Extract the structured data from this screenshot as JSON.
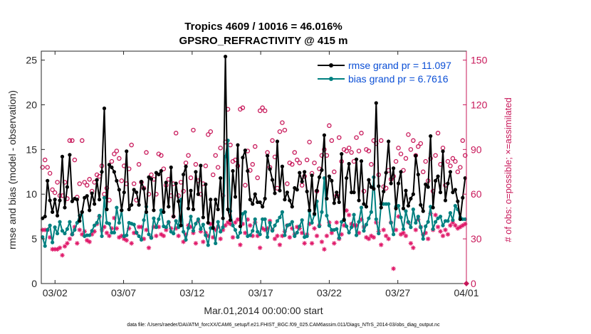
{
  "chart_data": {
    "type": "line",
    "title": "Tropics 4609 / 10016 = 46.016%",
    "subtitle": "GPSRO_REFRACTIVITY @ 415 m",
    "xlabel": "Mar.01,2014 00:00:00 start",
    "ylabel": "rmse and bias (model - observation)",
    "ylabel_right": "# of obs: o=possible; ×=assimilated",
    "footnote": "data file: /Users/raeder/DAI/ATM_forcXX/CAM6_setup/f.e21.FHIST_BGC.f09_025.CAM6assim.011/Diags_NTrS_2014-03/obs_diag_output.nc",
    "x_range": [
      0.5,
      31.5
    ],
    "ylim": [
      0,
      26
    ],
    "ylim_right": [
      0,
      156
    ],
    "x_ticks": [
      1.5,
      6.5,
      11.5,
      16.5,
      21.5,
      26.5,
      31.5
    ],
    "x_tick_labels": [
      "03/02",
      "03/07",
      "03/12",
      "03/17",
      "03/22",
      "03/27",
      "04/01"
    ],
    "y_ticks": [
      0,
      5,
      10,
      15,
      20,
      25
    ],
    "y_tick_labels": [
      "0",
      "5",
      "10",
      "15",
      "20",
      "25"
    ],
    "y_right_ticks": [
      0,
      30,
      60,
      90,
      120,
      150
    ],
    "y_right_tick_labels": [
      "0",
      "30",
      "60",
      "90",
      "120",
      "150"
    ],
    "legend_position": "top-right",
    "series": [
      {
        "name": "rmse grand pr = 11.097",
        "color": "#000000",
        "values": [
          7.3,
          7.5,
          11.5,
          9.3,
          8,
          9.4,
          7.6,
          9.3,
          14.2,
          8.5,
          10.8,
          14.4,
          9.2,
          9.5,
          9.4,
          7,
          8,
          9.6,
          9.8,
          8.2,
          10.1,
          8.9,
          11.6,
          9.4,
          12.5,
          19.6,
          8.3,
          13.3,
          13,
          12.5,
          11.5,
          10.5,
          8.2,
          10.2,
          14.8,
          8.3,
          8.8,
          10.5,
          10.2,
          8.8,
          11.4,
          10.6,
          8,
          11.9,
          11.7,
          8.2,
          12.4,
          12.2,
          12.6,
          8,
          11.3,
          8.6,
          13,
          7.5,
          11.2,
          9.2,
          6.5,
          12.2,
          13.1,
          8.4,
          10.4,
          8.3,
          12.5,
          10,
          13.2,
          7.4,
          11.1,
          6.8,
          9.4,
          6.2,
          9.4,
          8.3,
          11.8,
          7.3,
          25.4,
          8.3,
          7.1,
          12.6,
          9.7,
          15.5,
          6.4,
          14.1,
          14.9,
          12.6,
          9.4,
          8.9,
          10,
          9.1,
          9.1,
          8.6,
          9.5,
          14.3,
          12.8,
          11.6,
          10.1,
          15.9,
          10.4,
          13.1,
          9.4,
          10.2,
          9.3,
          8.6,
          10.7,
          10.5,
          12.4,
          11.4,
          12.5,
          10.3,
          8.2,
          12.1,
          7.8,
          10.4,
          11.9,
          12.7,
          16.6,
          9.5,
          12,
          11.5,
          9,
          10.2,
          9.1,
          14.5,
          7.1,
          11.8,
          13.4,
          10.2,
          10.2,
          13.9,
          9.3,
          13.7,
          8.9,
          8.6,
          11.6,
          10.8,
          10.6,
          20.2,
          10.9,
          8.5,
          10.3,
          12.4,
          15.9,
          11.2,
          12.9,
          8.4,
          11.2,
          12.5,
          8.4,
          10.4,
          8.7,
          9.5,
          10,
          14.3,
          12.2,
          8.8,
          8.1,
          11.1,
          10.8,
          16.5,
          8.5,
          11.5,
          12,
          10.2,
          14.8,
          9.3,
          11.2,
          12.5,
          10.2,
          10.5,
          9.2,
          7.2,
          9.6,
          11.8
        ]
      },
      {
        "name": "bias grand pr = 6.7616",
        "color": "#008080",
        "values": [
          5.2,
          4.2,
          6,
          6.5,
          4.6,
          6.3,
          5.6,
          6.9,
          5.9,
          5.6,
          6.1,
          6.9,
          5.5,
          6,
          6.8,
          7.6,
          8,
          5.3,
          5.4,
          5.4,
          5.9,
          6.5,
          6.8,
          7.6,
          5.3,
          9.6,
          6.8,
          6.7,
          5.7,
          5.7,
          8.5,
          6.8,
          8.2,
          5.3,
          5.4,
          6.8,
          6.7,
          6.6,
          5.7,
          5.3,
          4.9,
          7.1,
          8.6,
          5.5,
          5.1,
          7.3,
          6.3,
          7.2,
          8.2,
          6.4,
          6.3,
          6.9,
          5.8,
          5.6,
          7,
          6.3,
          9.4,
          5.8,
          4.9,
          6.2,
          7.5,
          5.9,
          6.7,
          7.2,
          6.1,
          6.6,
          5.4,
          4.3,
          6.2,
          6.3,
          4.5,
          6.9,
          5.8,
          6.3,
          14.2,
          16,
          8.1,
          6.5,
          6,
          5.2,
          5.7,
          7.8,
          8,
          5.3,
          5.4,
          5.9,
          7.2,
          5.8,
          5.5,
          7.2,
          7.2,
          5.2,
          6.8,
          5.9,
          6.5,
          7,
          7.4,
          8,
          5.4,
          6.5,
          6.6,
          6.9,
          5.3,
          5.7,
          6.4,
          7.1,
          5.2,
          5.3,
          8.1,
          6.8,
          7.7,
          9.2,
          6.4,
          8,
          11.8,
          7.6,
          6.5,
          6,
          6,
          6.1,
          5.1,
          6.9,
          7.2,
          6.4,
          5.7,
          6.3,
          7.7,
          5.4,
          6.9,
          8.5,
          5.9,
          6.6,
          7.3,
          8,
          11.9,
          7.2,
          5.6,
          8.9,
          8.9,
          8.9,
          8.9,
          6.8,
          5.5,
          8.6,
          8.7,
          7.4,
          6.1,
          8.1,
          6.9,
          6.3,
          8.3,
          6.8,
          7.5,
          6.3,
          5,
          6.4,
          6.9,
          8.6,
          6.1,
          6.9,
          7.3,
          7.5,
          6.5,
          7,
          7,
          7.9,
          7.1,
          8.7,
          8.3,
          7.4,
          7.2,
          7.2
        ]
      }
    ],
    "possible": [
      78,
      83,
      78,
      74,
      63,
      61,
      68,
      59,
      59,
      68,
      57,
      96,
      96,
      83,
      58,
      67,
      96,
      68,
      66,
      70,
      62,
      68,
      73,
      72,
      79,
      60,
      64,
      56,
      82,
      87,
      89,
      84,
      69,
      79,
      67,
      77,
      93,
      67,
      56,
      80,
      68,
      64,
      88,
      60,
      73,
      70,
      60,
      87,
      86,
      77,
      66,
      70,
      59,
      67,
      101,
      59,
      68,
      62,
      81,
      86,
      71,
      103,
      80,
      69,
      60,
      67,
      79,
      100,
      102,
      73,
      86,
      78,
      91,
      59,
      95,
      117,
      93,
      82,
      83,
      79,
      117,
      118,
      66,
      89,
      76,
      80,
      92,
      71,
      116,
      118,
      116,
      88,
      78,
      96,
      85,
      64,
      102,
      108,
      103,
      67,
      81,
      80,
      88,
      83,
      81,
      66,
      72,
      83,
      95,
      74,
      81,
      62,
      77,
      86,
      90,
      86,
      106,
      96,
      75,
      59,
      98,
      82,
      90,
      89,
      91,
      88,
      82,
      98,
      89,
      101,
      62,
      90,
      89,
      80,
      96,
      94,
      73,
      96,
      65,
      64,
      76,
      70,
      72,
      82,
      91,
      87,
      76,
      84,
      100,
      90,
      96,
      86,
      92,
      94,
      75,
      82,
      69,
      84,
      62,
      86,
      101,
      80,
      91,
      66,
      82,
      79,
      84,
      82,
      75,
      78,
      96,
      86
    ],
    "assimilated": [
      36,
      36,
      36,
      31,
      23,
      23,
      23,
      24,
      19,
      25,
      27,
      30,
      33,
      38,
      27,
      36,
      33,
      35,
      29,
      28,
      33,
      35,
      40,
      45,
      36,
      38,
      34,
      32,
      37,
      44,
      37,
      31,
      32,
      30,
      29,
      37,
      27,
      34,
      34,
      38,
      38,
      30,
      36,
      24,
      31,
      38,
      32,
      38,
      33,
      32,
      36,
      41,
      37,
      45,
      37,
      32,
      43,
      28,
      33,
      39,
      38,
      34,
      27,
      42,
      35,
      28,
      34,
      32,
      40,
      31,
      36,
      38,
      30,
      36,
      39,
      41,
      40,
      31,
      41,
      43,
      26,
      40,
      34,
      43,
      39,
      32,
      41,
      32,
      24,
      37,
      36,
      37,
      42,
      36,
      30,
      32,
      26,
      32,
      35,
      39,
      31,
      37,
      33,
      38,
      37,
      34,
      27,
      33,
      40,
      27,
      37,
      32,
      39,
      28,
      23,
      32,
      41,
      34,
      27,
      41,
      30,
      33,
      39,
      49,
      46,
      40,
      39,
      39,
      34,
      43,
      38,
      31,
      30,
      32,
      31,
      41,
      35,
      26,
      36,
      32,
      30,
      41,
      10,
      36,
      45,
      33,
      34,
      32,
      41,
      27,
      24,
      36,
      43,
      38,
      33,
      34,
      30,
      47,
      36,
      46,
      38,
      35,
      32,
      36,
      33,
      39,
      41,
      39,
      37,
      38,
      39,
      40
    ],
    "marker_colors": {
      "possible": "#c8185a",
      "assimilated": "#e01a6a"
    }
  }
}
